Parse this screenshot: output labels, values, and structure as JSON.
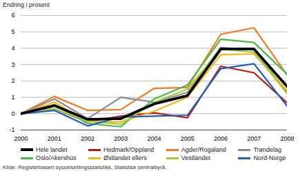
{
  "chart_data": {
    "type": "line",
    "y_label": "Endring i prosent",
    "source": "Kilde: Registerbasert sysselsettingsstatistikk, Statistisk sentralbyrå.",
    "x": [
      2000,
      2001,
      2002,
      2003,
      2004,
      2005,
      2006,
      2007,
      2008
    ],
    "xlim": [
      2000,
      2008
    ],
    "xticks": [
      2000,
      2001,
      2002,
      2003,
      2004,
      2005,
      2006,
      2007,
      2008
    ],
    "ylim": [
      -1,
      6
    ],
    "yticks": [
      -1,
      0,
      1,
      2,
      3,
      4,
      5,
      6
    ],
    "grid": true,
    "legend": "bottom",
    "series": [
      {
        "name": "Hele landet",
        "color": "#000000",
        "values": [
          0,
          0.5,
          -0.35,
          -0.3,
          0.6,
          1.1,
          3.95,
          3.95,
          1.65
        ]
      },
      {
        "name": "Hedmark/Oppland",
        "color": "#c0140f",
        "values": [
          0,
          0.3,
          -0.5,
          -0.15,
          0.05,
          -0.25,
          2.9,
          2.5,
          0.65
        ]
      },
      {
        "name": "Agder/Rogaland",
        "color": "#f47a20",
        "values": [
          0,
          1.05,
          0.2,
          0.25,
          1.55,
          1.6,
          4.85,
          5.25,
          2.35
        ]
      },
      {
        "name": "Trøndelag",
        "color": "#8c8c8c",
        "values": [
          0,
          0.9,
          -0.3,
          1.0,
          0.7,
          1.3,
          4.05,
          3.9,
          1.3
        ]
      },
      {
        "name": "Oslo/Akershus",
        "color": "#4cb848",
        "values": [
          0,
          0.55,
          -0.6,
          -0.8,
          0.9,
          1.75,
          4.55,
          4.35,
          2.4
        ]
      },
      {
        "name": "Østlandet ellers",
        "color": "#f5b61a",
        "values": [
          0,
          0.7,
          -0.5,
          -0.5,
          0.15,
          1.0,
          3.6,
          3.65,
          1.4
        ]
      },
      {
        "name": "Vestlandet",
        "color": "#a3cf3c",
        "values": [
          0,
          0.3,
          -0.45,
          -0.65,
          0.7,
          1.5,
          3.95,
          3.75,
          1.2
        ]
      },
      {
        "name": "Nord-Norge",
        "color": "#1f5fbf",
        "values": [
          0,
          0.2,
          -0.75,
          -0.2,
          -0.15,
          -0.1,
          2.75,
          3.05,
          0.45
        ]
      }
    ]
  }
}
